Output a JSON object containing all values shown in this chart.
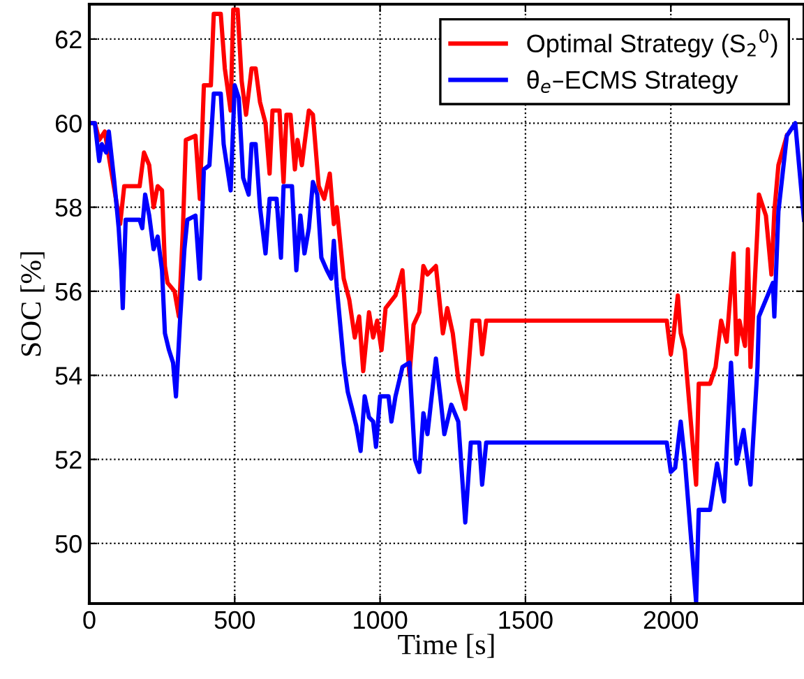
{
  "chart_data": {
    "type": "line",
    "xlabel": "Time [s]",
    "ylabel": "SOC [%]",
    "xlim": [
      0,
      2458
    ],
    "ylim": [
      48.57,
      62.83
    ],
    "xticks": [
      0,
      500,
      1000,
      1500,
      2000
    ],
    "yticks": [
      50,
      52,
      54,
      56,
      58,
      60,
      62
    ],
    "grid": true,
    "legend": "top right",
    "line_style": "solid",
    "marker": "none",
    "series": [
      {
        "name": "Optimal Strategy (S$_{2}$$^{0}$)",
        "color": "#ff0000",
        "x": [
          0,
          19,
          34,
          53,
          77,
          106,
          120,
          173,
          188,
          206,
          221,
          235,
          250,
          260,
          269,
          293,
          308,
          322,
          332,
          365,
          380,
          394,
          418,
          428,
          452,
          466,
          486,
          495,
          510,
          524,
          539,
          558,
          572,
          587,
          606,
          620,
          630,
          654,
          668,
          678,
          692,
          707,
          716,
          731,
          740,
          755,
          769,
          789,
          808,
          827,
          841,
          851,
          875,
          894,
          913,
          928,
          942,
          962,
          976,
          990,
          1005,
          1019,
          1053,
          1077,
          1101,
          1115,
          1135,
          1149,
          1163,
          1192,
          1216,
          1231,
          1250,
          1269,
          1293,
          1317,
          1341,
          1351,
          1365,
          1986,
          2000,
          2010,
          2024,
          2034,
          2048,
          2087,
          2096,
          2135,
          2154,
          2173,
          2192,
          2216,
          2226,
          2236,
          2255,
          2265,
          2274,
          2298,
          2303,
          2327,
          2346,
          2356,
          2370,
          2399
        ],
        "values": [
          60.0,
          60.0,
          59.6,
          59.8,
          58.8,
          57.6,
          58.5,
          58.5,
          59.3,
          59.0,
          58.0,
          58.5,
          58.4,
          56.6,
          56.2,
          56.0,
          55.4,
          57.5,
          59.6,
          59.7,
          58.2,
          60.9,
          60.9,
          62.6,
          62.6,
          61.3,
          60.3,
          62.7,
          62.7,
          61.0,
          60.2,
          61.3,
          61.3,
          60.5,
          60.0,
          58.8,
          60.3,
          60.3,
          58.6,
          60.2,
          60.2,
          58.9,
          59.6,
          59.0,
          59.5,
          60.3,
          60.2,
          58.5,
          58.2,
          58.8,
          57.6,
          58.0,
          56.3,
          55.8,
          54.9,
          55.4,
          54.1,
          55.5,
          54.9,
          55.3,
          54.6,
          55.6,
          55.9,
          56.5,
          54.0,
          55.2,
          55.5,
          56.6,
          56.4,
          56.6,
          55.0,
          55.6,
          55.0,
          53.9,
          53.2,
          55.3,
          55.3,
          54.5,
          55.3,
          55.3,
          54.5,
          55.0,
          55.9,
          55.0,
          54.6,
          51.4,
          53.8,
          53.8,
          54.2,
          55.3,
          54.8,
          56.9,
          54.5,
          55.3,
          54.7,
          57.0,
          54.2,
          57.5,
          58.3,
          57.8,
          56.4,
          57.9,
          59.0,
          59.7
        ]
      },
      {
        "name": "θ$_{e}$–ECMS Strategy",
        "color": "#0000ff",
        "x": [
          0,
          19,
          34,
          43,
          58,
          67,
          86,
          101,
          110,
          115,
          125,
          173,
          182,
          192,
          206,
          221,
          235,
          250,
          260,
          274,
          288,
          298,
          312,
          327,
          337,
          365,
          380,
          394,
          413,
          428,
          452,
          462,
          486,
          500,
          514,
          529,
          548,
          558,
          572,
          587,
          606,
          620,
          644,
          659,
          668,
          697,
          712,
          726,
          740,
          755,
          769,
          784,
          798,
          817,
          832,
          841,
          851,
          875,
          889,
          904,
          918,
          933,
          947,
          962,
          976,
          986,
          1000,
          1029,
          1039,
          1053,
          1077,
          1101,
          1120,
          1135,
          1149,
          1163,
          1192,
          1207,
          1221,
          1245,
          1269,
          1293,
          1312,
          1341,
          1351,
          1365,
          1986,
          2000,
          2015,
          2034,
          2048,
          2087,
          2096,
          2135,
          2159,
          2183,
          2207,
          2226,
          2250,
          2274,
          2298,
          2303,
          2351,
          2356,
          2370,
          2399,
          2428,
          2458
        ],
        "values": [
          60.0,
          60.0,
          59.1,
          59.5,
          59.3,
          59.8,
          58.6,
          57.5,
          56.5,
          55.6,
          57.7,
          57.7,
          57.5,
          58.3,
          57.8,
          57.0,
          57.3,
          56.5,
          55.0,
          54.6,
          54.3,
          53.5,
          55.3,
          57.0,
          57.7,
          57.8,
          56.3,
          58.9,
          59.0,
          60.7,
          60.7,
          59.5,
          58.4,
          60.9,
          60.6,
          58.7,
          58.3,
          59.5,
          59.5,
          58.0,
          56.9,
          58.2,
          58.2,
          56.8,
          58.5,
          58.5,
          56.5,
          57.8,
          56.9,
          57.5,
          58.6,
          58.3,
          56.8,
          56.5,
          56.3,
          57.2,
          56.1,
          54.3,
          53.6,
          53.2,
          52.8,
          52.2,
          53.5,
          53.0,
          52.9,
          52.3,
          53.5,
          53.5,
          52.9,
          53.5,
          54.2,
          54.3,
          52.0,
          51.7,
          53.1,
          52.6,
          54.4,
          53.5,
          52.6,
          53.3,
          52.9,
          50.5,
          52.4,
          52.4,
          51.4,
          52.4,
          52.4,
          51.7,
          51.8,
          52.9,
          52.0,
          48.6,
          50.8,
          50.8,
          51.9,
          51.0,
          54.3,
          51.9,
          52.7,
          51.4,
          54.2,
          55.4,
          56.2,
          55.4,
          57.9,
          59.7,
          60.0,
          57.7
        ]
      }
    ]
  }
}
